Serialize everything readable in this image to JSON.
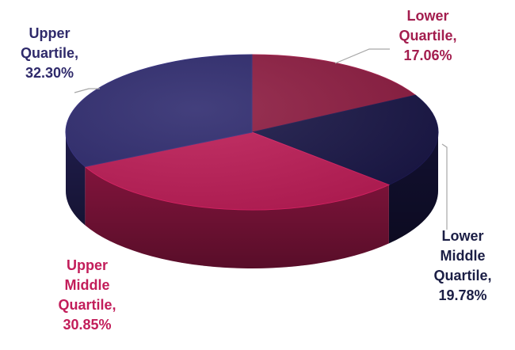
{
  "chart_data": {
    "type": "pie",
    "title": "",
    "legend": "none",
    "slices": [
      {
        "category": "Lower Quartile",
        "value": 17.06,
        "color": "#8e1d42",
        "label_lines": [
          "Lower",
          "Quartile,",
          "17.06%"
        ],
        "label_color": "#a31d4e"
      },
      {
        "category": "Lower Middle Quartile",
        "value": 19.78,
        "color": "#1a1747",
        "label_lines": [
          "Lower",
          "Middle",
          "Quartile,",
          "19.78%"
        ],
        "label_color": "#1b1e45"
      },
      {
        "category": "Upper Middle Quartile",
        "value": 30.85,
        "color": "#bd1d57",
        "label_lines": [
          "Upper",
          "Middle",
          "Quartile,",
          "30.85%"
        ],
        "label_color": "#c21d5a"
      },
      {
        "category": "Upper Quartile",
        "value": 32.3,
        "color": "#2e2a6e",
        "label_lines": [
          "Upper",
          "Quartile,",
          "32.30%"
        ],
        "label_color": "#2f2a6b"
      }
    ]
  }
}
